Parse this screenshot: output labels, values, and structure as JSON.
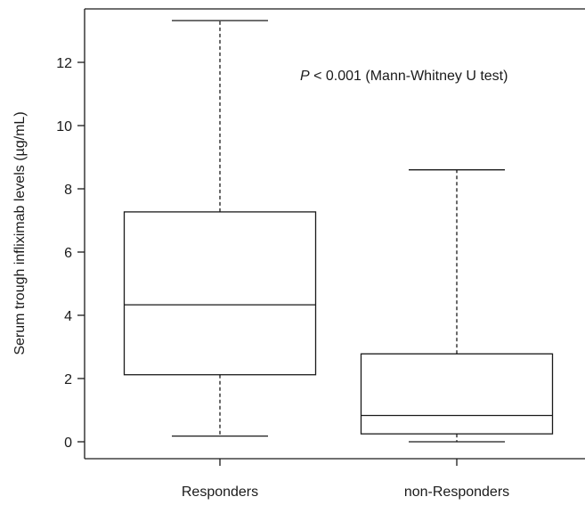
{
  "chart_data": {
    "type": "boxplot",
    "title": "",
    "xlabel": "",
    "ylabel": "Serum trough infliximab levels (µg/mL)",
    "ylim": [
      -0.5,
      13.5
    ],
    "yticks": [
      0,
      2,
      4,
      6,
      8,
      10,
      12
    ],
    "grid": false,
    "categories": [
      "Responders",
      "non-Responders"
    ],
    "boxes": [
      {
        "label": "Responders",
        "whisker_low": 0.18,
        "q1": 2.12,
        "median": 4.33,
        "q3": 7.27,
        "whisker_high": 13.32
      },
      {
        "label": "non-Responders",
        "whisker_low": 0.0,
        "q1": 0.25,
        "median": 0.83,
        "q3": 2.78,
        "whisker_high": 8.6
      }
    ],
    "annotation": {
      "italic_prefix": "P",
      "rest": " < 0.001 (Mann-Whitney U test)"
    }
  }
}
